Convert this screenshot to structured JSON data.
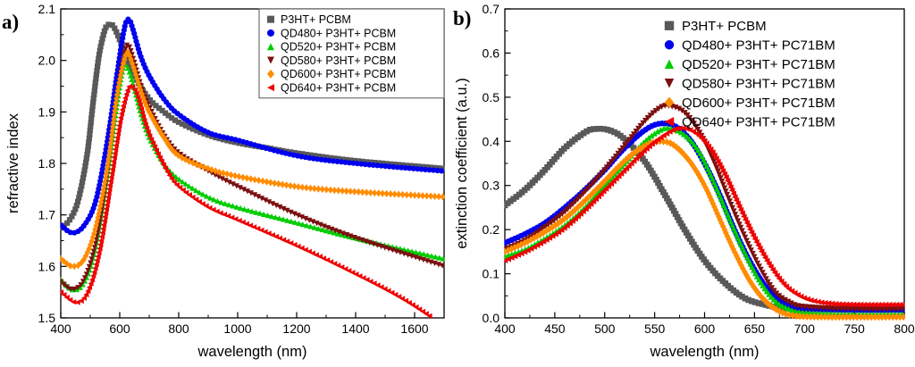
{
  "figure": {
    "panel_a_label": "a)",
    "panel_b_label": "b)"
  },
  "chart_data": [
    {
      "id": "a",
      "type": "scatter",
      "title": "",
      "xlabel": "wavelength (nm)",
      "ylabel": "refractive index",
      "xlim": [
        400,
        1700
      ],
      "ylim": [
        1.5,
        2.1
      ],
      "x_major_ticks": [
        400,
        600,
        800,
        1000,
        1200,
        1400,
        1600
      ],
      "x_tick_labels": [
        "400",
        "600",
        "800",
        "1000",
        "1200",
        "1400",
        "1600"
      ],
      "x_minor_step": 100,
      "y_major_ticks": [
        1.5,
        1.6,
        1.7,
        1.8,
        1.9,
        2.0,
        2.1
      ],
      "y_tick_labels": [
        "1.5",
        "1.6",
        "1.7",
        "1.8",
        "1.9",
        "2.0",
        "2.1"
      ],
      "y_minor_step": 0.05,
      "grid": false,
      "legend_position": "top-right",
      "legend_border": true,
      "series": [
        {
          "name": "P3HT+ PCBM",
          "marker": "square",
          "color": "#595959",
          "points": [
            [
              400,
              1.675
            ],
            [
              430,
              1.69
            ],
            [
              460,
              1.73
            ],
            [
              490,
              1.82
            ],
            [
              510,
              1.92
            ],
            [
              530,
              2.01
            ],
            [
              550,
              2.06
            ],
            [
              565,
              2.07
            ],
            [
              580,
              2.065
            ],
            [
              600,
              2.04
            ],
            [
              620,
              2.01
            ],
            [
              650,
              1.97
            ],
            [
              700,
              1.925
            ],
            [
              750,
              1.9
            ],
            [
              800,
              1.88
            ],
            [
              900,
              1.855
            ],
            [
              1000,
              1.84
            ],
            [
              1100,
              1.83
            ],
            [
              1200,
              1.82
            ],
            [
              1400,
              1.805
            ],
            [
              1700,
              1.79
            ]
          ]
        },
        {
          "name": "QD480+ P3HT+ PCBM",
          "marker": "circle",
          "color": "#0000ee",
          "points": [
            [
              400,
              1.68
            ],
            [
              440,
              1.665
            ],
            [
              480,
              1.68
            ],
            [
              520,
              1.73
            ],
            [
              560,
              1.85
            ],
            [
              590,
              1.97
            ],
            [
              615,
              2.06
            ],
            [
              630,
              2.08
            ],
            [
              645,
              2.06
            ],
            [
              670,
              2.01
            ],
            [
              700,
              1.97
            ],
            [
              750,
              1.925
            ],
            [
              800,
              1.895
            ],
            [
              900,
              1.86
            ],
            [
              1000,
              1.845
            ],
            [
              1200,
              1.815
            ],
            [
              1400,
              1.8
            ],
            [
              1700,
              1.785
            ]
          ]
        },
        {
          "name": "QD520+ P3HT+ PCBM",
          "marker": "triangle-up",
          "color": "#00cc00",
          "points": [
            [
              400,
              1.575
            ],
            [
              440,
              1.555
            ],
            [
              480,
              1.57
            ],
            [
              520,
              1.64
            ],
            [
              560,
              1.78
            ],
            [
              590,
              1.91
            ],
            [
              610,
              1.98
            ],
            [
              622,
              1.99
            ],
            [
              640,
              1.965
            ],
            [
              670,
              1.9
            ],
            [
              700,
              1.85
            ],
            [
              750,
              1.8
            ],
            [
              800,
              1.77
            ],
            [
              900,
              1.735
            ],
            [
              1000,
              1.715
            ],
            [
              1200,
              1.685
            ],
            [
              1400,
              1.655
            ],
            [
              1700,
              1.615
            ]
          ]
        },
        {
          "name": "QD580+ P3HT+ PCBM",
          "marker": "triangle-down",
          "color": "#7b1010",
          "points": [
            [
              400,
              1.57
            ],
            [
              440,
              1.555
            ],
            [
              480,
              1.575
            ],
            [
              520,
              1.65
            ],
            [
              560,
              1.79
            ],
            [
              590,
              1.93
            ],
            [
              615,
              2.01
            ],
            [
              628,
              2.03
            ],
            [
              645,
              2.005
            ],
            [
              675,
              1.945
            ],
            [
              700,
              1.91
            ],
            [
              750,
              1.855
            ],
            [
              800,
              1.82
            ],
            [
              900,
              1.785
            ],
            [
              1000,
              1.755
            ],
            [
              1200,
              1.7
            ],
            [
              1400,
              1.655
            ],
            [
              1700,
              1.6
            ]
          ]
        },
        {
          "name": "QD600+ P3HT+ PCBM",
          "marker": "diamond",
          "color": "#ff8c00",
          "points": [
            [
              400,
              1.615
            ],
            [
              440,
              1.6
            ],
            [
              480,
              1.615
            ],
            [
              520,
              1.68
            ],
            [
              560,
              1.8
            ],
            [
              590,
              1.93
            ],
            [
              615,
              2.0
            ],
            [
              628,
              2.015
            ],
            [
              645,
              1.99
            ],
            [
              675,
              1.935
            ],
            [
              700,
              1.9
            ],
            [
              750,
              1.85
            ],
            [
              800,
              1.815
            ],
            [
              900,
              1.79
            ],
            [
              1000,
              1.775
            ],
            [
              1200,
              1.755
            ],
            [
              1400,
              1.745
            ],
            [
              1700,
              1.735
            ]
          ]
        },
        {
          "name": "QD640+ P3HT+ PCBM",
          "marker": "triangle-left",
          "color": "#ee0000",
          "points": [
            [
              400,
              1.55
            ],
            [
              450,
              1.53
            ],
            [
              490,
              1.55
            ],
            [
              530,
              1.63
            ],
            [
              570,
              1.77
            ],
            [
              600,
              1.88
            ],
            [
              625,
              1.94
            ],
            [
              640,
              1.95
            ],
            [
              660,
              1.93
            ],
            [
              690,
              1.87
            ],
            [
              720,
              1.83
            ],
            [
              760,
              1.785
            ],
            [
              800,
              1.755
            ],
            [
              900,
              1.715
            ],
            [
              1000,
              1.69
            ],
            [
              1200,
              1.64
            ],
            [
              1400,
              1.585
            ],
            [
              1550,
              1.54
            ],
            [
              1660,
              1.5
            ]
          ]
        }
      ]
    },
    {
      "id": "b",
      "type": "scatter",
      "title": "",
      "xlabel": "wavelength (nm)",
      "ylabel": "extinction coefficient (a.u.)",
      "xlim": [
        400,
        800
      ],
      "ylim": [
        0.0,
        0.7
      ],
      "x_major_ticks": [
        400,
        450,
        500,
        550,
        600,
        650,
        700,
        750,
        800
      ],
      "x_tick_labels": [
        "400",
        "450",
        "500",
        "550",
        "600",
        "650",
        "700",
        "750",
        "800"
      ],
      "x_minor_step": 25,
      "y_major_ticks": [
        0.0,
        0.1,
        0.2,
        0.3,
        0.4,
        0.5,
        0.6,
        0.7
      ],
      "y_tick_labels": [
        "0.0",
        "0.1",
        "0.2",
        "0.3",
        "0.4",
        "0.5",
        "0.6",
        "0.7"
      ],
      "y_minor_step": 0.05,
      "grid": false,
      "legend_position": "top-right",
      "legend_border": false,
      "series": [
        {
          "name": "P3HT+ PCBM",
          "marker": "square",
          "color": "#595959",
          "points": [
            [
              400,
              0.255
            ],
            [
              420,
              0.29
            ],
            [
              440,
              0.335
            ],
            [
              460,
              0.385
            ],
            [
              480,
              0.42
            ],
            [
              490,
              0.428
            ],
            [
              505,
              0.425
            ],
            [
              520,
              0.405
            ],
            [
              540,
              0.355
            ],
            [
              560,
              0.28
            ],
            [
              580,
              0.2
            ],
            [
              600,
              0.13
            ],
            [
              620,
              0.08
            ],
            [
              640,
              0.045
            ],
            [
              660,
              0.03
            ],
            [
              680,
              0.022
            ],
            [
              700,
              0.02
            ],
            [
              750,
              0.018
            ],
            [
              800,
              0.018
            ]
          ]
        },
        {
          "name": "QD480+ P3HT+ PC71BM",
          "marker": "circle",
          "color": "#0000ee",
          "points": [
            [
              400,
              0.17
            ],
            [
              420,
              0.19
            ],
            [
              440,
              0.215
            ],
            [
              460,
              0.25
            ],
            [
              480,
              0.29
            ],
            [
              500,
              0.335
            ],
            [
              520,
              0.385
            ],
            [
              540,
              0.425
            ],
            [
              555,
              0.44
            ],
            [
              570,
              0.435
            ],
            [
              585,
              0.405
            ],
            [
              600,
              0.35
            ],
            [
              615,
              0.28
            ],
            [
              630,
              0.2
            ],
            [
              645,
              0.13
            ],
            [
              660,
              0.075
            ],
            [
              675,
              0.04
            ],
            [
              690,
              0.025
            ],
            [
              710,
              0.02
            ],
            [
              750,
              0.018
            ],
            [
              800,
              0.018
            ]
          ]
        },
        {
          "name": "QD520+ P3HT+ PC71BM",
          "marker": "triangle-up",
          "color": "#00cc00",
          "points": [
            [
              400,
              0.14
            ],
            [
              420,
              0.155
            ],
            [
              440,
              0.18
            ],
            [
              460,
              0.21
            ],
            [
              480,
              0.25
            ],
            [
              500,
              0.3
            ],
            [
              520,
              0.35
            ],
            [
              540,
              0.4
            ],
            [
              555,
              0.425
            ],
            [
              565,
              0.43
            ],
            [
              580,
              0.415
            ],
            [
              595,
              0.375
            ],
            [
              610,
              0.305
            ],
            [
              625,
              0.225
            ],
            [
              640,
              0.15
            ],
            [
              655,
              0.085
            ],
            [
              670,
              0.04
            ],
            [
              685,
              0.02
            ],
            [
              700,
              0.012
            ],
            [
              750,
              0.008
            ],
            [
              800,
              0.008
            ]
          ]
        },
        {
          "name": "QD580+ P3HT+ PC71BM",
          "marker": "triangle-down",
          "color": "#7b1010",
          "points": [
            [
              400,
              0.155
            ],
            [
              420,
              0.175
            ],
            [
              440,
              0.205
            ],
            [
              460,
              0.24
            ],
            [
              480,
              0.285
            ],
            [
              500,
              0.335
            ],
            [
              520,
              0.39
            ],
            [
              540,
              0.445
            ],
            [
              555,
              0.475
            ],
            [
              565,
              0.48
            ],
            [
              580,
              0.465
            ],
            [
              595,
              0.42
            ],
            [
              610,
              0.35
            ],
            [
              625,
              0.265
            ],
            [
              640,
              0.185
            ],
            [
              655,
              0.115
            ],
            [
              670,
              0.06
            ],
            [
              685,
              0.035
            ],
            [
              700,
              0.025
            ],
            [
              750,
              0.02
            ],
            [
              800,
              0.02
            ]
          ]
        },
        {
          "name": "QD600+ P3HT+ PC71BM",
          "marker": "diamond",
          "color": "#ff8c00",
          "points": [
            [
              400,
              0.15
            ],
            [
              420,
              0.17
            ],
            [
              440,
              0.195
            ],
            [
              460,
              0.225
            ],
            [
              480,
              0.265
            ],
            [
              500,
              0.31
            ],
            [
              515,
              0.345
            ],
            [
              530,
              0.375
            ],
            [
              545,
              0.395
            ],
            [
              558,
              0.4
            ],
            [
              570,
              0.39
            ],
            [
              585,
              0.355
            ],
            [
              600,
              0.3
            ],
            [
              615,
              0.225
            ],
            [
              630,
              0.15
            ],
            [
              645,
              0.085
            ],
            [
              660,
              0.04
            ],
            [
              675,
              0.015
            ],
            [
              690,
              0.005
            ],
            [
              720,
              0.002
            ],
            [
              800,
              0.002
            ]
          ]
        },
        {
          "name": "QD640+ P3HT+ PC71BM",
          "marker": "triangle-left",
          "color": "#ee0000",
          "points": [
            [
              400,
              0.13
            ],
            [
              420,
              0.15
            ],
            [
              440,
              0.175
            ],
            [
              460,
              0.205
            ],
            [
              480,
              0.245
            ],
            [
              500,
              0.29
            ],
            [
              520,
              0.335
            ],
            [
              540,
              0.38
            ],
            [
              560,
              0.415
            ],
            [
              575,
              0.43
            ],
            [
              590,
              0.42
            ],
            [
              605,
              0.385
            ],
            [
              620,
              0.325
            ],
            [
              635,
              0.25
            ],
            [
              650,
              0.18
            ],
            [
              665,
              0.12
            ],
            [
              680,
              0.075
            ],
            [
              695,
              0.05
            ],
            [
              710,
              0.038
            ],
            [
              730,
              0.032
            ],
            [
              760,
              0.03
            ],
            [
              800,
              0.03
            ]
          ]
        }
      ]
    }
  ]
}
